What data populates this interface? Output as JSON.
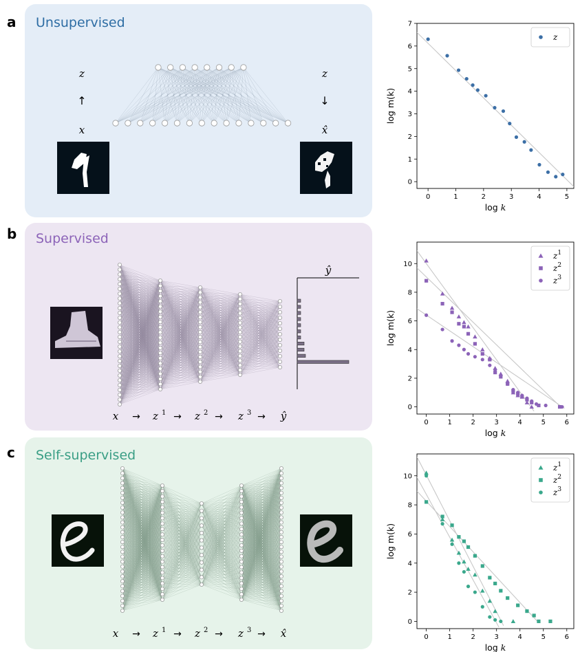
{
  "panels": {
    "a": {
      "letter": "a",
      "title": "Unsupervised",
      "title_color": "#2e6da4",
      "bg": "#e4edf7",
      "labels_left": [
        "z",
        "↑",
        "x"
      ],
      "labels_right": [
        "z",
        "↓",
        "x̂"
      ]
    },
    "b": {
      "letter": "b",
      "title": "Supervised",
      "title_color": "#8c63b8",
      "bg": "#ede6f2",
      "output_label": "ŷ",
      "flow": [
        "x",
        "→",
        "z",
        "→",
        "z",
        "→",
        "z",
        "→",
        "ŷ"
      ],
      "flow_sup": [
        "",
        "",
        "1",
        "",
        "2",
        "",
        "3",
        "",
        ""
      ]
    },
    "c": {
      "letter": "c",
      "title": "Self-supervised",
      "title_color": "#3a9e85",
      "bg": "#e6f3ea",
      "flow": [
        "x",
        "→",
        "z",
        "→",
        "z",
        "→",
        "z",
        "→",
        "x̂"
      ],
      "flow_sup": [
        "",
        "",
        "1",
        "",
        "2",
        "",
        "3",
        "",
        ""
      ]
    }
  },
  "colors": {
    "blue": "#3c6fa6",
    "purple": "#8c63b8",
    "teal": "#3aa88c",
    "fitline": "#c8c8c8",
    "node_edge": "#9a9a9a",
    "bar": "#7a6f86"
  },
  "chart_data": [
    {
      "type": "scatter",
      "xlabel": "log k",
      "ylabel": "log m(k)",
      "xlim": [
        -0.4,
        5.25
      ],
      "ylim": [
        -0.3,
        7
      ],
      "xticks": [
        0,
        1,
        2,
        3,
        4,
        5
      ],
      "yticks": [
        0,
        1,
        2,
        3,
        4,
        5,
        6,
        7
      ],
      "legend_position": "top-right",
      "series": [
        {
          "name": "z",
          "marker": "circle",
          "color": "#3c6fa6",
          "x": [
            0,
            0.69,
            1.1,
            1.39,
            1.61,
            1.79,
            2.08,
            2.4,
            2.71,
            2.94,
            3.18,
            3.47,
            3.71,
            4.01,
            4.32,
            4.6,
            4.85
          ],
          "y": [
            6.3,
            5.57,
            4.93,
            4.55,
            4.27,
            4.05,
            3.8,
            3.27,
            3.12,
            2.57,
            1.97,
            1.76,
            1.4,
            0.75,
            0.42,
            0.22,
            0.32
          ],
          "fit": [
            [
              -0.4,
              6.6
            ],
            [
              5.25,
              -0.22
            ]
          ]
        }
      ]
    },
    {
      "type": "scatter",
      "xlabel": "log k",
      "ylabel": "log m(k)",
      "xlim": [
        -0.4,
        6.3
      ],
      "ylim": [
        -0.5,
        11.5
      ],
      "xticks": [
        0,
        1,
        2,
        3,
        4,
        5,
        6
      ],
      "yticks": [
        0,
        2,
        4,
        6,
        8,
        10
      ],
      "legend_position": "top-right",
      "series": [
        {
          "name": "z",
          "sup": "1",
          "marker": "triangle",
          "color": "#8c63b8",
          "x": [
            0,
            0.69,
            1.1,
            1.39,
            1.61,
            1.79,
            2.08,
            2.4,
            2.71,
            2.94,
            3.18,
            3.47,
            3.71,
            3.91,
            4.09,
            4.3,
            4.5
          ],
          "y": [
            10.2,
            7.9,
            6.9,
            6.3,
            5.9,
            5.6,
            4.9,
            4.0,
            3.4,
            2.7,
            2.3,
            1.8,
            1.0,
            0.8,
            0.7,
            0.3,
            0.0
          ],
          "fit": [
            [
              -0.4,
              10.9
            ],
            [
              4.6,
              -0.3
            ]
          ]
        },
        {
          "name": "z",
          "sup": "2",
          "marker": "square",
          "color": "#8c63b8",
          "x": [
            0,
            0.69,
            1.1,
            1.39,
            1.61,
            1.79,
            2.08,
            2.4,
            2.71,
            2.94,
            3.18,
            3.47,
            3.71,
            3.91,
            4.09,
            4.3,
            4.5,
            4.8,
            5.7
          ],
          "y": [
            8.8,
            7.2,
            6.6,
            5.8,
            5.6,
            5.1,
            4.4,
            3.7,
            3.3,
            2.4,
            2.1,
            1.6,
            1.1,
            0.9,
            0.7,
            0.5,
            0.3,
            0.1,
            0.0
          ],
          "fit": [
            [
              -0.4,
              9.7
            ],
            [
              5.8,
              -0.1
            ]
          ]
        },
        {
          "name": "z",
          "sup": "3",
          "marker": "circle",
          "color": "#8c63b8",
          "x": [
            0,
            0.69,
            1.1,
            1.39,
            1.61,
            1.79,
            2.08,
            2.4,
            2.71,
            2.94,
            3.18,
            3.47,
            3.71,
            3.91,
            4.09,
            4.3,
            4.5,
            4.7,
            5.1,
            5.8
          ],
          "y": [
            6.4,
            5.4,
            4.6,
            4.3,
            4.0,
            3.7,
            3.5,
            3.3,
            2.9,
            2.6,
            2.2,
            1.6,
            1.2,
            1.0,
            0.8,
            0.6,
            0.4,
            0.2,
            0.1,
            0.0
          ],
          "fit": [
            [
              -0.4,
              6.85
            ],
            [
              5.9,
              -0.1
            ]
          ]
        }
      ]
    },
    {
      "type": "scatter",
      "xlabel": "log k",
      "ylabel": "log m(k)",
      "xlim": [
        -0.4,
        6.3
      ],
      "ylim": [
        -0.5,
        11.5
      ],
      "xticks": [
        0,
        1,
        2,
        3,
        4,
        5,
        6
      ],
      "yticks": [
        0,
        2,
        4,
        6,
        8,
        10
      ],
      "legend_position": "top-right",
      "series": [
        {
          "name": "z",
          "sup": "1",
          "marker": "triangle",
          "color": "#3aa88c",
          "x": [
            0,
            0.69,
            1.1,
            1.39,
            1.61,
            1.79,
            2.08,
            2.4,
            2.71,
            2.94,
            3.71
          ],
          "y": [
            10.2,
            7.0,
            5.6,
            4.7,
            4.1,
            3.6,
            3.2,
            2.1,
            1.4,
            0.7,
            0.0
          ],
          "fit": [
            [
              -0.4,
              11.3
            ],
            [
              3.3,
              -0.3
            ]
          ]
        },
        {
          "name": "z",
          "sup": "2",
          "marker": "square",
          "color": "#3aa88c",
          "x": [
            0,
            0.69,
            1.1,
            1.39,
            1.61,
            1.79,
            2.08,
            2.4,
            2.71,
            2.94,
            3.18,
            3.47,
            3.91,
            4.3,
            4.6,
            4.8,
            5.3
          ],
          "y": [
            8.2,
            7.2,
            6.6,
            5.8,
            5.5,
            5.1,
            4.5,
            3.8,
            3.0,
            2.6,
            2.1,
            1.6,
            1.1,
            0.7,
            0.4,
            0.0,
            0.0
          ],
          "fit": [
            [
              -0.4,
              8.95
            ],
            [
              4.8,
              -0.1
            ]
          ]
        },
        {
          "name": "z",
          "sup": "3",
          "marker": "circle",
          "color": "#3aa88c",
          "x": [
            0,
            0.69,
            1.1,
            1.39,
            1.61,
            1.79,
            2.08,
            2.4,
            2.71,
            2.94,
            3.18
          ],
          "y": [
            10.0,
            6.7,
            5.3,
            4.0,
            3.4,
            2.4,
            2.0,
            1.0,
            0.3,
            0.1,
            0.0
          ],
          "fit": [
            [
              -0.4,
              9.9
            ],
            [
              3.1,
              -0.4
            ]
          ]
        }
      ]
    }
  ]
}
